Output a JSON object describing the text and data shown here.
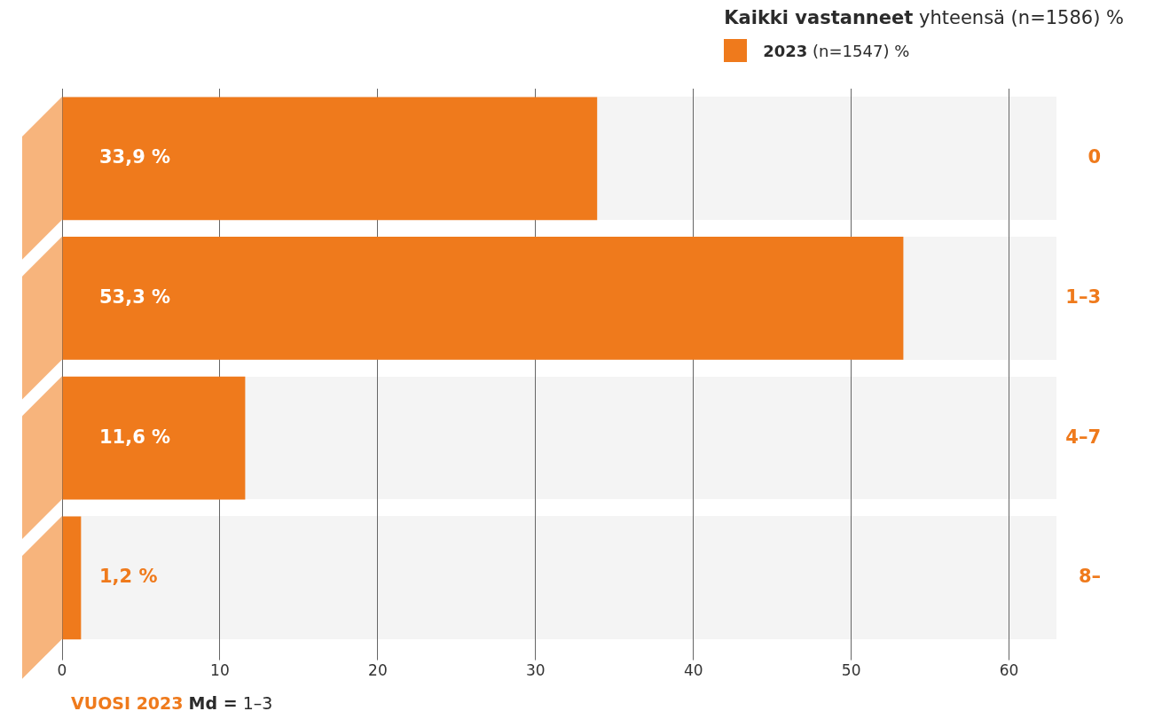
{
  "chart_data": {
    "type": "bar",
    "orientation": "horizontal",
    "categories": [
      "0",
      "1–3",
      "4–7",
      "8–"
    ],
    "legend_title": "Kaikki vastanneet yhteensä (n=1586) %",
    "series": [
      {
        "name": "2023 (n=1547) %",
        "color": "#ef7a1c",
        "values": [
          33.9,
          53.3,
          11.6,
          1.2
        ],
        "value_labels": [
          "33,9 %",
          "53,3 %",
          "11,6 %",
          "1,2 %"
        ]
      }
    ],
    "xlim": [
      0,
      63
    ],
    "xticks": [
      0,
      10,
      20,
      30,
      40,
      50,
      60
    ],
    "grid": "x",
    "legend": "top right",
    "annotations": [
      "VUOSI 2023 Md = 1–3"
    ]
  }
}
